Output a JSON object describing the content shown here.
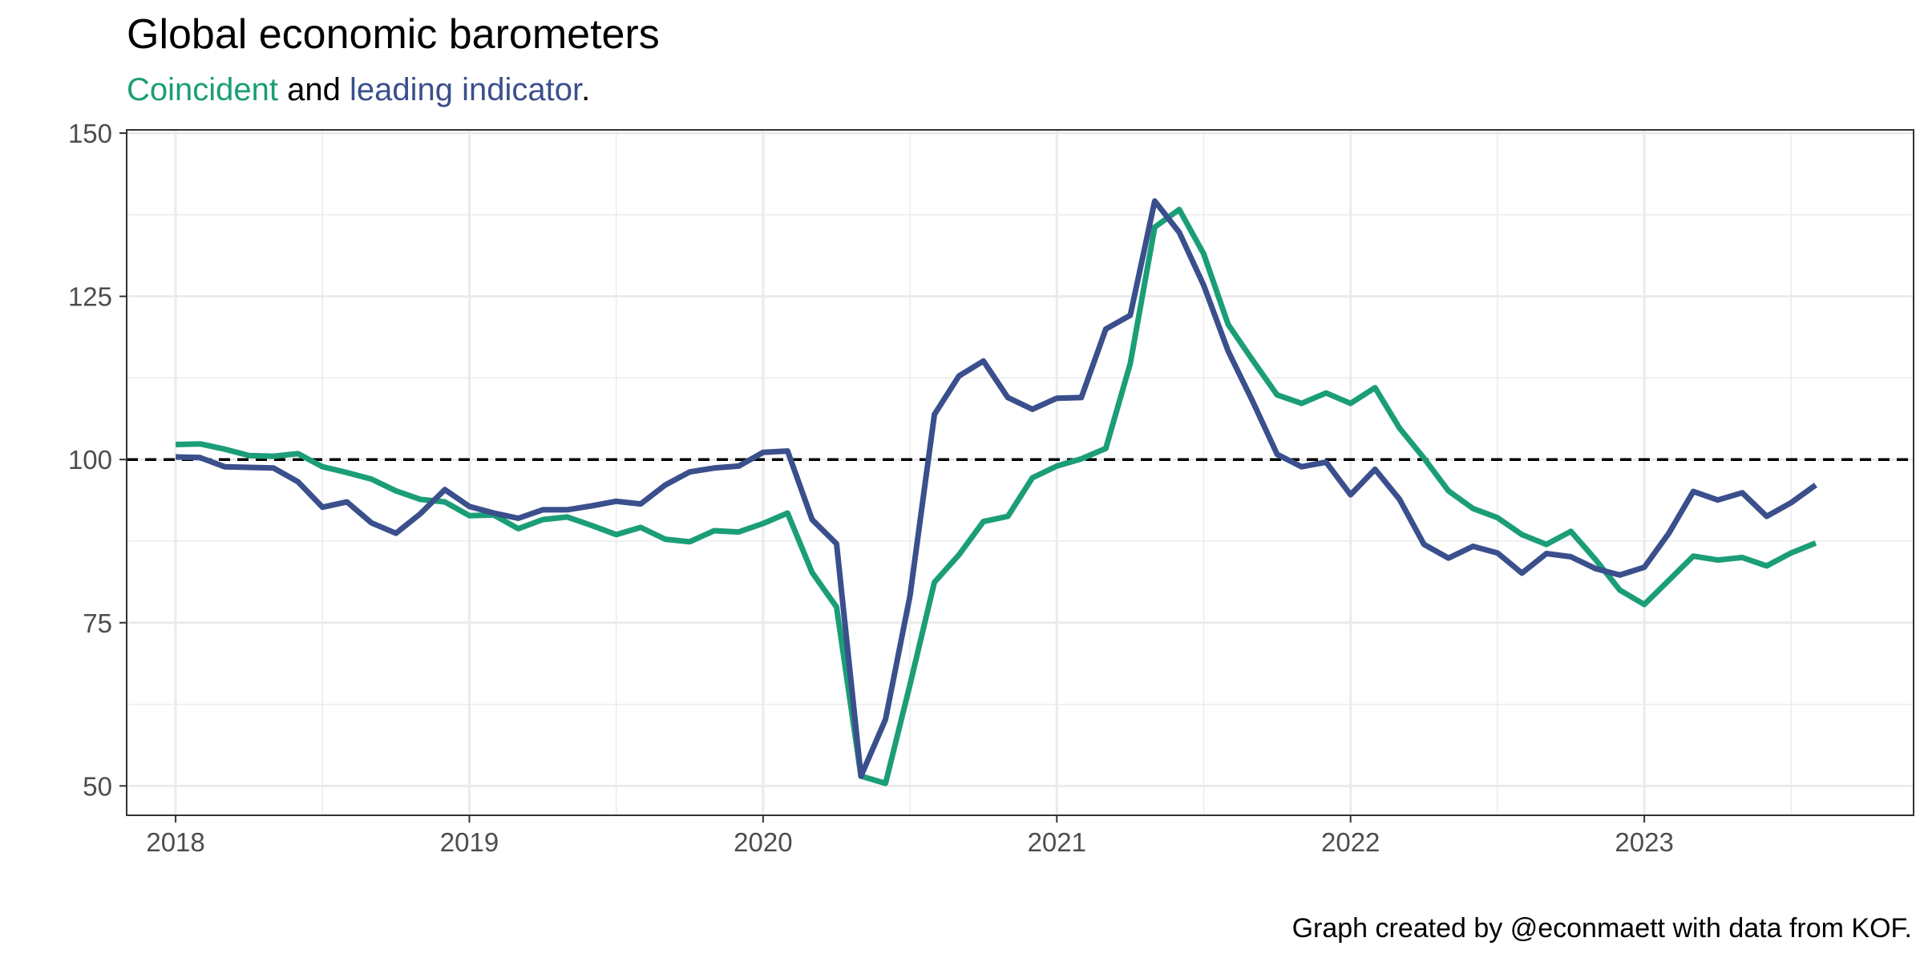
{
  "chart_data": {
    "type": "line",
    "title": "Global economic barometers",
    "subtitle_parts": {
      "series1_word": "Coincident",
      "connector": "and",
      "series2_word": "leading indicator",
      "end": "."
    },
    "caption": "Graph created by @econmaett with data from KOF.",
    "xlabel": "",
    "ylabel": "",
    "x_ticks": [
      "2018",
      "2019",
      "2020",
      "2021",
      "2022",
      "2023"
    ],
    "y_ticks": [
      "50",
      "75",
      "100",
      "125",
      "150"
    ],
    "xlim": [
      "2017-11",
      "2023-12"
    ],
    "ylim": [
      45.5,
      150.5
    ],
    "reference_line": {
      "y": 100,
      "style": "dashed"
    },
    "grid": true,
    "legend": "none (series named in subtitle)",
    "colors": {
      "coincident": "#1b9e77",
      "leading": "#3a4f8c"
    },
    "x": [
      "2018-01",
      "2018-02",
      "2018-03",
      "2018-04",
      "2018-05",
      "2018-06",
      "2018-07",
      "2018-08",
      "2018-09",
      "2018-10",
      "2018-11",
      "2018-12",
      "2019-01",
      "2019-02",
      "2019-03",
      "2019-04",
      "2019-05",
      "2019-06",
      "2019-07",
      "2019-08",
      "2019-09",
      "2019-10",
      "2019-11",
      "2019-12",
      "2020-01",
      "2020-02",
      "2020-03",
      "2020-04",
      "2020-05",
      "2020-06",
      "2020-07",
      "2020-08",
      "2020-09",
      "2020-10",
      "2020-11",
      "2020-12",
      "2021-01",
      "2021-02",
      "2021-03",
      "2021-04",
      "2021-05",
      "2021-06",
      "2021-07",
      "2021-08",
      "2021-09",
      "2021-10",
      "2021-11",
      "2021-12",
      "2022-01",
      "2022-02",
      "2022-03",
      "2022-04",
      "2022-05",
      "2022-06",
      "2022-07",
      "2022-08",
      "2022-09",
      "2022-10",
      "2022-11",
      "2022-12",
      "2023-01",
      "2023-02",
      "2023-03",
      "2023-04",
      "2023-05",
      "2023-06",
      "2023-07",
      "2023-08"
    ],
    "series": [
      {
        "name": "Coincident",
        "values": [
          102.3,
          102.4,
          101.6,
          100.6,
          100.5,
          100.9,
          98.9,
          98.0,
          97.0,
          95.2,
          93.9,
          93.5,
          91.4,
          91.5,
          89.4,
          90.8,
          91.2,
          89.9,
          88.5,
          89.6,
          87.8,
          87.4,
          89.1,
          88.9,
          90.2,
          91.8,
          82.7,
          77.4,
          51.5,
          50.4,
          65.5,
          81.2,
          85.4,
          90.5,
          91.3,
          97.2,
          99.0,
          100.1,
          101.7,
          114.7,
          135.6,
          138.3,
          131.5,
          120.7,
          115.2,
          109.9,
          108.6,
          110.2,
          108.6,
          111.0,
          104.8,
          100.2,
          95.2,
          92.5,
          91.1,
          88.5,
          87.0,
          89.0,
          84.7,
          80.0,
          77.8,
          81.5,
          85.2,
          84.6,
          85.0,
          83.7,
          85.7,
          87.2
        ]
      },
      {
        "name": "leading indicator",
        "values": [
          100.4,
          100.3,
          98.9,
          98.8,
          98.7,
          96.6,
          92.7,
          93.5,
          90.3,
          88.7,
          91.7,
          95.4,
          92.8,
          91.8,
          91.0,
          92.3,
          92.3,
          92.9,
          93.6,
          93.2,
          96.1,
          98.1,
          98.7,
          99.0,
          101.1,
          101.3,
          90.8,
          87.1,
          51.5,
          60.2,
          79.1,
          106.9,
          112.8,
          115.1,
          109.5,
          107.7,
          109.4,
          109.5,
          120.0,
          122.1,
          139.6,
          134.8,
          126.7,
          116.6,
          108.9,
          100.8,
          98.9,
          99.6,
          94.6,
          98.5,
          93.9,
          87.0,
          84.9,
          86.7,
          85.7,
          82.6,
          85.6,
          85.1,
          83.3,
          82.3,
          83.5,
          88.7,
          95.1,
          93.8,
          94.9,
          91.3,
          93.4,
          96.1
        ]
      }
    ]
  }
}
